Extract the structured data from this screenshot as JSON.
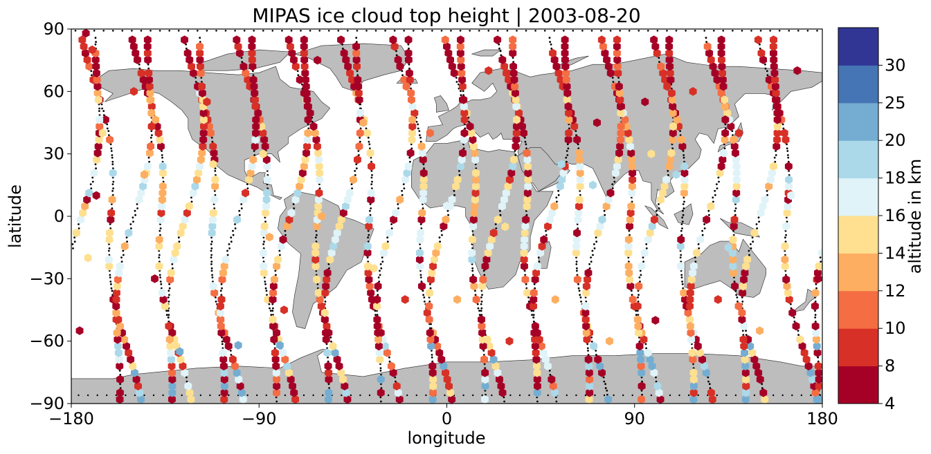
{
  "chart_data": {
    "type": "scatter",
    "title": "MIPAS ice cloud top height | 2003-08-20",
    "xlabel": "longitude",
    "ylabel": "latitude",
    "xlim": [
      -180,
      180
    ],
    "ylim": [
      -90,
      90
    ],
    "xticks": [
      "−180",
      "−90",
      "0",
      "90",
      "180"
    ],
    "yticks": [
      "90",
      "60",
      "30",
      "0",
      "−30",
      "−60",
      "−90"
    ],
    "xtick_values": [
      -180,
      -90,
      0,
      90,
      180
    ],
    "ytick_values": [
      90,
      60,
      30,
      0,
      -30,
      -60,
      -90
    ],
    "grid": false,
    "marker": "hexagon",
    "colorbar": {
      "label": "altitude in km",
      "levels": [
        4,
        8,
        10,
        12,
        14,
        16,
        18,
        20,
        25,
        30
      ],
      "tick_labels": [
        "4",
        "8",
        "10",
        "12",
        "14",
        "16",
        "18",
        "20",
        "25",
        "30"
      ],
      "colors": [
        "#a50026",
        "#d73027",
        "#f46d43",
        "#fdae61",
        "#fee090",
        "#e0f3f8",
        "#abd9e9",
        "#74add1",
        "#4575b4",
        "#313695"
      ]
    },
    "colors": {
      "land": "#bdbdbd",
      "ocean": "#ffffff",
      "no_cloud_track": "#000000"
    },
    "orbits_descending_lon_at_equator": [
      -161,
      -137,
      -112,
      -87,
      -62,
      -37,
      -12,
      13,
      38,
      63,
      88,
      113,
      138,
      163
    ],
    "orbits_ascending_lon_at_equator": [
      -175,
      -150,
      -125,
      -100,
      -75,
      -50,
      -25,
      0,
      25,
      50,
      75,
      100,
      125,
      150
    ],
    "cloud_points_sample": [
      {
        "lon": -173,
        "lat": 88,
        "alt_km": 6
      },
      {
        "lon": -170,
        "lat": 80,
        "alt_km": 9
      },
      {
        "lon": -165,
        "lat": 40,
        "alt_km": 15
      },
      {
        "lon": -168,
        "lat": 10,
        "alt_km": 6
      },
      {
        "lon": -172,
        "lat": -20,
        "alt_km": 14
      },
      {
        "lon": -176,
        "lat": -55,
        "alt_km": 6
      },
      {
        "lon": -150,
        "lat": 60,
        "alt_km": 8
      },
      {
        "lon": -145,
        "lat": 20,
        "alt_km": 13
      },
      {
        "lon": -140,
        "lat": -30,
        "alt_km": 7
      },
      {
        "lon": -128,
        "lat": -65,
        "alt_km": 21
      },
      {
        "lon": -115,
        "lat": 55,
        "alt_km": 9
      },
      {
        "lon": -112,
        "lat": 25,
        "alt_km": 15
      },
      {
        "lon": -108,
        "lat": -40,
        "alt_km": 9
      },
      {
        "lon": -100,
        "lat": -62,
        "alt_km": 22
      },
      {
        "lon": -88,
        "lat": 30,
        "alt_km": 15
      },
      {
        "lon": -85,
        "lat": -10,
        "alt_km": 13
      },
      {
        "lon": -78,
        "lat": -45,
        "alt_km": 9
      },
      {
        "lon": -80,
        "lat": -62,
        "alt_km": 21
      },
      {
        "lon": -62,
        "lat": 75,
        "alt_km": 6
      },
      {
        "lon": -60,
        "lat": 0,
        "alt_km": 13
      },
      {
        "lon": -40,
        "lat": 45,
        "alt_km": 12
      },
      {
        "lon": -35,
        "lat": -25,
        "alt_km": 14
      },
      {
        "lon": -20,
        "lat": -40,
        "alt_km": 9
      },
      {
        "lon": -8,
        "lat": 40,
        "alt_km": 11
      },
      {
        "lon": 0,
        "lat": 5,
        "alt_km": 17
      },
      {
        "lon": 5,
        "lat": -40,
        "alt_km": 13
      },
      {
        "lon": 20,
        "lat": 70,
        "alt_km": 8
      },
      {
        "lon": 28,
        "lat": -5,
        "alt_km": 15
      },
      {
        "lon": 30,
        "lat": -60,
        "alt_km": 9
      },
      {
        "lon": 55,
        "lat": 25,
        "alt_km": 19
      },
      {
        "lon": 52,
        "lat": -40,
        "alt_km": 12
      },
      {
        "lon": 72,
        "lat": 45,
        "alt_km": 6
      },
      {
        "lon": 70,
        "lat": 15,
        "alt_km": 19
      },
      {
        "lon": 78,
        "lat": -60,
        "alt_km": 13
      },
      {
        "lon": 95,
        "lat": 55,
        "alt_km": 7
      },
      {
        "lon": 98,
        "lat": 30,
        "alt_km": 15
      },
      {
        "lon": 100,
        "lat": -50,
        "alt_km": 6
      },
      {
        "lon": 110,
        "lat": 20,
        "alt_km": 19
      },
      {
        "lon": 118,
        "lat": 60,
        "alt_km": 9
      },
      {
        "lon": 130,
        "lat": -40,
        "alt_km": 9
      },
      {
        "lon": 135,
        "lat": -15,
        "alt_km": 19
      },
      {
        "lon": 140,
        "lat": 40,
        "alt_km": 8
      },
      {
        "lon": 150,
        "lat": -55,
        "alt_km": 13
      },
      {
        "lon": 165,
        "lat": 10,
        "alt_km": 17
      },
      {
        "lon": 168,
        "lat": 70,
        "alt_km": 6
      },
      {
        "lon": 178,
        "lat": -30,
        "alt_km": 7
      }
    ]
  }
}
